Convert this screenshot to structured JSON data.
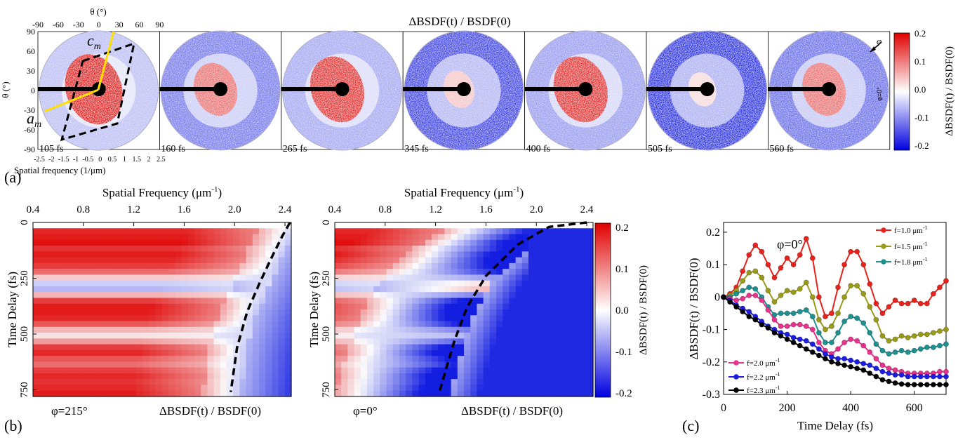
{
  "panel_labels": {
    "a": "(a)",
    "b": "(b)",
    "c": "(c)"
  },
  "panel_a": {
    "title": "ΔBSDF(t) / BSDF(0)",
    "theta_top_label": "θ (°)",
    "theta_left_label": "θ (°)",
    "spatial_label": "Spatial frequency (1/μm)",
    "top_ticks": [
      "-90",
      "-60",
      "-30",
      "0",
      "30",
      "60",
      "90"
    ],
    "left_ticks": [
      "90",
      "60",
      "30",
      "0",
      "-30",
      "-60",
      "-90"
    ],
    "bottom_ticks": [
      "-2.5",
      "-2",
      "-1.5",
      "-1",
      "-0.5",
      "0",
      "0.5",
      "1",
      "1.5",
      "2",
      "2.5"
    ],
    "axis_c": "c",
    "axis_c_sub": "m",
    "axis_a": "a",
    "axis_a_sub": "m",
    "phi_label": "φ",
    "phi_zero_label": "φ=0°",
    "frames": [
      {
        "label": "105 fs",
        "red": 0.95,
        "blue": 0.25
      },
      {
        "label": "160 fs",
        "red": 0.55,
        "blue": 0.55
      },
      {
        "label": "265 fs",
        "red": 0.85,
        "blue": 0.35
      },
      {
        "label": "345 fs",
        "red": 0.2,
        "blue": 0.8
      },
      {
        "label": "400 fs",
        "red": 0.85,
        "blue": 0.4
      },
      {
        "label": "505 fs",
        "red": 0.12,
        "blue": 0.9
      },
      {
        "label": "560 fs",
        "red": 0.55,
        "blue": 0.6
      }
    ],
    "colorbar": {
      "label": "ΔBSDF(t) / BSDF(0)",
      "ticks": [
        "0.2",
        "0.1",
        "0.0",
        "-0.1",
        "-0.2"
      ]
    }
  },
  "panel_b": {
    "top_label": "Spatial Frequency (μm",
    "top_label_sup": "-1",
    "top_label_close": ")",
    "x_ticks": [
      "0.4",
      "0.8",
      "1.2",
      "1.6",
      "2.0",
      "2.4"
    ],
    "y_label": "Time Delay (fs)",
    "y_ticks": [
      "0",
      "250",
      "500",
      "750"
    ],
    "maps": [
      {
        "phi": "φ=215°",
        "caption": "ΔBSDF(t) / BSDF(0)"
      },
      {
        "phi": "φ=0°",
        "caption": "ΔBSDF(t) / BSDF(0)"
      }
    ],
    "colorbar": {
      "label": "ΔBSDF(t) / BSDF(0)",
      "ticks": [
        "0.2",
        "0.1",
        "0.0",
        "-0.1",
        "-0.2"
      ]
    }
  },
  "chart_data": {
    "type": "line",
    "title": "φ=0°",
    "xlabel": "Time Delay (fs)",
    "ylabel": "ΔBSDF(t) / BSDF(0)",
    "xlim": [
      0,
      700
    ],
    "ylim": [
      -0.3,
      0.23
    ],
    "x_ticks": [
      0,
      200,
      400,
      600
    ],
    "y_ticks": [
      0.2,
      0.1,
      0.0,
      -0.1,
      -0.2,
      -0.3
    ],
    "x": [
      0,
      20,
      40,
      60,
      80,
      100,
      120,
      140,
      160,
      180,
      200,
      220,
      240,
      260,
      280,
      300,
      320,
      340,
      360,
      380,
      400,
      420,
      440,
      460,
      480,
      500,
      520,
      540,
      560,
      580,
      600,
      620,
      640,
      660,
      680,
      700
    ],
    "series": [
      {
        "name": "f=1.0 μm",
        "sup": "-1",
        "color": "#e8221c",
        "values": [
          0,
          0.01,
          0.03,
          0.08,
          0.13,
          0.16,
          0.14,
          0.1,
          0.06,
          0.09,
          0.12,
          0.1,
          0.13,
          0.18,
          0.12,
          0.0,
          -0.06,
          -0.05,
          0.03,
          0.1,
          0.14,
          0.14,
          0.1,
          0.04,
          -0.02,
          -0.05,
          -0.03,
          -0.01,
          -0.02,
          -0.02,
          -0.01,
          -0.02,
          -0.02,
          0.01,
          0.03,
          0.05
        ]
      },
      {
        "name": "f=1.5 μm",
        "sup": "-1",
        "color": "#9a9a1a",
        "values": [
          0,
          0.005,
          0.02,
          0.05,
          0.075,
          0.08,
          0.06,
          0.02,
          -0.015,
          0.005,
          0.02,
          0.015,
          0.025,
          0.045,
          0.0,
          -0.07,
          -0.1,
          -0.09,
          -0.05,
          0.0,
          0.035,
          0.035,
          0.01,
          -0.03,
          -0.07,
          -0.12,
          -0.135,
          -0.13,
          -0.12,
          -0.125,
          -0.12,
          -0.115,
          -0.115,
          -0.11,
          -0.105,
          -0.1
        ]
      },
      {
        "name": "f=1.8 μm",
        "sup": "-1",
        "color": "#1f8f8f",
        "values": [
          0,
          0.0,
          0.01,
          0.02,
          0.03,
          0.025,
          0.0,
          -0.03,
          -0.055,
          -0.05,
          -0.05,
          -0.05,
          -0.045,
          -0.04,
          -0.06,
          -0.11,
          -0.14,
          -0.14,
          -0.11,
          -0.075,
          -0.06,
          -0.065,
          -0.08,
          -0.11,
          -0.145,
          -0.165,
          -0.175,
          -0.17,
          -0.165,
          -0.17,
          -0.165,
          -0.16,
          -0.155,
          -0.155,
          -0.15,
          -0.145
        ]
      },
      {
        "name": "f=2.0 μm",
        "sup": "-1",
        "color": "#e6338c",
        "values": [
          0,
          -0.005,
          -0.01,
          -0.005,
          0.005,
          0.005,
          -0.01,
          -0.04,
          -0.07,
          -0.09,
          -0.09,
          -0.085,
          -0.085,
          -0.09,
          -0.1,
          -0.14,
          -0.165,
          -0.175,
          -0.16,
          -0.14,
          -0.13,
          -0.135,
          -0.15,
          -0.17,
          -0.19,
          -0.21,
          -0.22,
          -0.225,
          -0.23,
          -0.235,
          -0.235,
          -0.235,
          -0.235,
          -0.235,
          -0.23,
          -0.23
        ]
      },
      {
        "name": "f=2.2 μm",
        "sup": "-1",
        "color": "#1d1de0",
        "values": [
          0,
          -0.01,
          -0.025,
          -0.035,
          -0.045,
          -0.06,
          -0.075,
          -0.09,
          -0.1,
          -0.11,
          -0.115,
          -0.125,
          -0.13,
          -0.135,
          -0.145,
          -0.16,
          -0.175,
          -0.185,
          -0.19,
          -0.19,
          -0.195,
          -0.2,
          -0.205,
          -0.21,
          -0.22,
          -0.23,
          -0.235,
          -0.24,
          -0.24,
          -0.245,
          -0.245,
          -0.245,
          -0.245,
          -0.245,
          -0.245,
          -0.245
        ]
      },
      {
        "name": "f=2.3 μm",
        "sup": "-1",
        "color": "#000000",
        "values": [
          0,
          -0.015,
          -0.03,
          -0.045,
          -0.06,
          -0.07,
          -0.085,
          -0.095,
          -0.11,
          -0.12,
          -0.13,
          -0.14,
          -0.15,
          -0.16,
          -0.17,
          -0.18,
          -0.19,
          -0.2,
          -0.205,
          -0.21,
          -0.215,
          -0.22,
          -0.225,
          -0.235,
          -0.245,
          -0.255,
          -0.26,
          -0.265,
          -0.268,
          -0.27,
          -0.27,
          -0.27,
          -0.27,
          -0.27,
          -0.27,
          -0.27
        ]
      }
    ]
  }
}
